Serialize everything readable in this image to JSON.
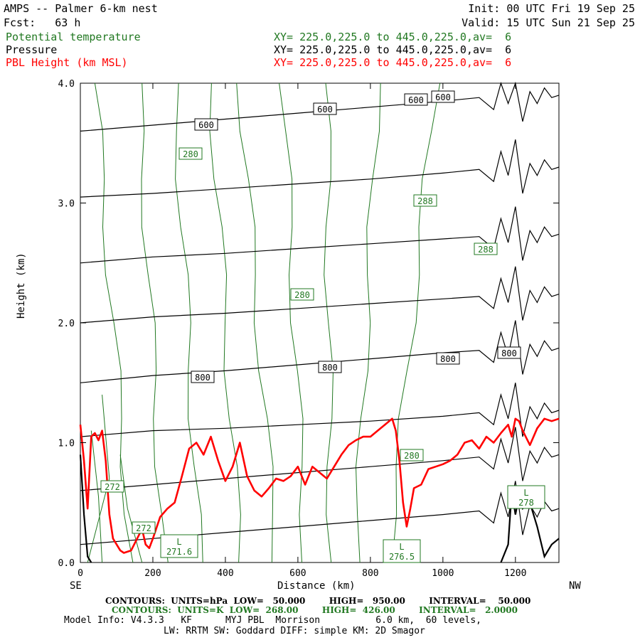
{
  "header": {
    "title": "AMPS -- Palmer 6-km nest",
    "fcst": "Fcst:   63 h",
    "init": "Init: 00 UTC Fri 19 Sep 25",
    "valid": "Valid: 15 UTC Sun 21 Sep 25",
    "colors": {
      "theta": "#217821",
      "pressure": "#000000",
      "pbl": "#ff0000"
    }
  },
  "legend": [
    {
      "name": "Potential temperature",
      "xy": "XY= 225.0,225.0 to 445.0,225.0,av=  6",
      "color": "#217821"
    },
    {
      "name": "Pressure",
      "xy": "XY= 225.0,225.0 to 445.0,225.0,av=  6",
      "color": "#000000"
    },
    {
      "name": "PBL Height (km MSL)",
      "xy": "XY= 225.0,225.0 to 445.0,225.0,av=  6",
      "color": "#ff0000"
    }
  ],
  "footer": {
    "contours_p": "CONTOURS:  UNITS=hPa  LOW=   50.000        HIGH=   950.00        INTERVAL=    50.000",
    "contours_t": "CONTOURS:  UNITS=K  LOW=  268.00        HIGH=  426.00        INTERVAL=   2.0000",
    "model_info": "Model Info: V4.3.3   KF      MYJ PBL  Morrison          6.0 km,  60 levels,",
    "model_info2": "LW: RRTM SW: Goddard DIFF: simple KM: 2D Smagor"
  },
  "chart_data": {
    "type": "line",
    "title": "AMPS -- Palmer 6-km nest",
    "xlabel": "Distance (km)",
    "ylabel": "Height (km)",
    "xlim": [
      0,
      1320
    ],
    "ylim": [
      0,
      4.0
    ],
    "x_ticks": [
      0,
      200,
      400,
      600,
      800,
      1000,
      1200
    ],
    "x_tick_labels": [
      "0",
      "200",
      "400",
      "600",
      "800",
      "1000",
      "1200"
    ],
    "y_ticks": [
      0,
      1,
      2,
      3,
      4
    ],
    "y_tick_labels": [
      "0.0",
      "1.0",
      "2.0",
      "3.0",
      "4.0"
    ],
    "x_end_labels": {
      "left": "SE",
      "right": "NW"
    },
    "series": [
      {
        "name": "PBL Height (km MSL)",
        "color": "#ff0000",
        "x": [
          0,
          10,
          20,
          30,
          40,
          50,
          60,
          70,
          80,
          90,
          100,
          110,
          120,
          140,
          160,
          170,
          180,
          190,
          200,
          220,
          240,
          260,
          280,
          300,
          320,
          340,
          360,
          380,
          400,
          420,
          440,
          460,
          480,
          500,
          520,
          540,
          560,
          580,
          600,
          620,
          640,
          660,
          680,
          700,
          720,
          740,
          760,
          780,
          800,
          820,
          840,
          860,
          870,
          880,
          890,
          900,
          910,
          920,
          940,
          960,
          980,
          1000,
          1020,
          1040,
          1060,
          1080,
          1100,
          1120,
          1140,
          1160,
          1180,
          1190,
          1200,
          1210,
          1220,
          1240,
          1260,
          1280,
          1300,
          1320
        ],
        "values": [
          1.15,
          0.85,
          0.45,
          1.05,
          1.08,
          1.02,
          1.1,
          0.85,
          0.4,
          0.2,
          0.15,
          0.1,
          0.08,
          0.1,
          0.22,
          0.28,
          0.15,
          0.12,
          0.2,
          0.38,
          0.45,
          0.5,
          0.72,
          0.95,
          1.0,
          0.9,
          1.05,
          0.85,
          0.68,
          0.8,
          1.0,
          0.72,
          0.6,
          0.55,
          0.62,
          0.7,
          0.68,
          0.72,
          0.8,
          0.65,
          0.8,
          0.75,
          0.7,
          0.8,
          0.9,
          0.98,
          1.02,
          1.05,
          1.05,
          1.1,
          1.15,
          1.2,
          1.1,
          0.85,
          0.5,
          0.3,
          0.45,
          0.62,
          0.65,
          0.78,
          0.8,
          0.82,
          0.85,
          0.9,
          1.0,
          1.02,
          0.95,
          1.05,
          1.0,
          1.08,
          1.15,
          1.05,
          1.2,
          1.18,
          1.1,
          0.98,
          1.12,
          1.2,
          1.18,
          1.2
        ]
      },
      {
        "name": "Pressure",
        "color": "#000000",
        "levels_hPa": [
          950,
          900,
          850,
          800,
          750,
          700,
          650,
          600
        ],
        "x": [
          0,
          200,
          400,
          600,
          800,
          1000,
          1100
        ],
        "heights_km": {
          "950": [
            0.15,
            0.2,
            0.25,
            0.3,
            0.35,
            0.4,
            0.43
          ],
          "900": [
            0.6,
            0.65,
            0.7,
            0.75,
            0.8,
            0.85,
            0.88
          ],
          "850": [
            1.05,
            1.1,
            1.12,
            1.15,
            1.18,
            1.22,
            1.25
          ],
          "800": [
            1.5,
            1.56,
            1.6,
            1.65,
            1.7,
            1.75,
            1.77
          ],
          "750": [
            2.0,
            2.05,
            2.08,
            2.12,
            2.16,
            2.2,
            2.22
          ],
          "700": [
            2.5,
            2.55,
            2.58,
            2.62,
            2.66,
            2.7,
            2.72
          ],
          "650": [
            3.05,
            3.08,
            3.12,
            3.16,
            3.2,
            3.25,
            3.28
          ],
          "600": [
            3.6,
            3.65,
            3.7,
            3.75,
            3.8,
            3.85,
            3.88
          ]
        }
      },
      {
        "name": "Potential temperature",
        "color": "#217821",
        "levels_K": [
          272,
          274,
          276,
          278,
          280,
          282,
          284,
          286,
          288
        ],
        "x_at_surface_km": [
          140,
          230,
          330,
          440,
          540,
          620,
          690,
          760,
          850
        ],
        "x_at_top_km": [
          40,
          160,
          260,
          360,
          440,
          560,
          680,
          820,
          980
        ]
      }
    ],
    "contour_labels": {
      "pressure": [
        "600",
        "600",
        "600",
        "600",
        "800",
        "800",
        "800",
        "800"
      ],
      "theta": [
        "280",
        "288",
        "288",
        "280",
        "280",
        "272",
        "272"
      ],
      "extrema": [
        {
          "label": "L",
          "value": "271.6"
        },
        {
          "label": "L",
          "value": "276.5"
        },
        {
          "label": "L",
          "value": "278"
        }
      ]
    },
    "terrain": {
      "color": "#000000",
      "x": [
        1160,
        1180,
        1190,
        1200,
        1210,
        1220,
        1240,
        1260,
        1280,
        1300,
        1320
      ],
      "values": [
        0,
        0.15,
        0.6,
        0.4,
        0.55,
        0.45,
        0.5,
        0.3,
        0.05,
        0.15,
        0.2
      ]
    }
  }
}
